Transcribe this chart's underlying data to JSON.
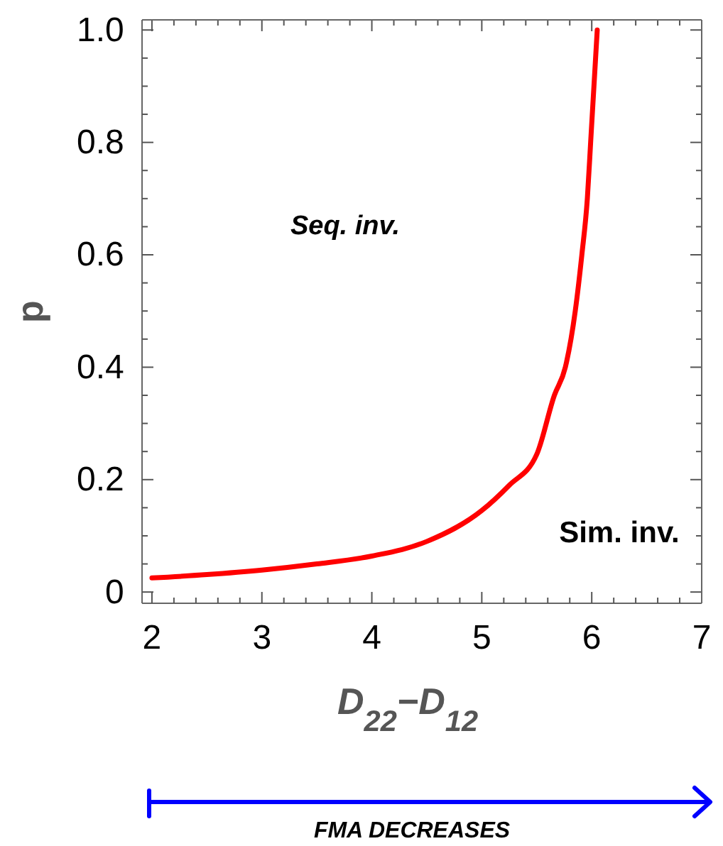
{
  "chart_data": {
    "type": "line",
    "xlabel": "D$_{22}$−D$_{12}$",
    "ylabel": "p",
    "x": [
      2,
      2.5,
      3,
      3.5,
      4,
      4.5,
      5,
      5.25,
      5.5,
      5.66,
      5.76,
      5.85,
      5.91,
      5.96,
      5.99,
      6.02,
      6.05
    ],
    "series": [
      {
        "color": "#ff0000",
        "values": [
          0.025,
          0.031,
          0.039,
          0.05,
          0.064,
          0.09,
          0.145,
          0.19,
          0.245,
          0.35,
          0.4,
          0.5,
          0.6,
          0.7,
          0.8,
          0.9,
          1.0
        ]
      }
    ],
    "xlim": [
      1.91,
      7
    ],
    "ylim": [
      -0.02,
      1.018
    ],
    "xticks": [
      2,
      {
        "value": 2.2,
        "label": null
      },
      {
        "value": 2.4,
        "label": null
      },
      {
        "value": 2.6,
        "label": null
      },
      {
        "value": 2.8,
        "label": null
      },
      3,
      {
        "value": 3.2,
        "label": null
      },
      {
        "value": 3.4,
        "label": null
      },
      {
        "value": 3.6,
        "label": null
      },
      {
        "value": 3.8,
        "label": null
      },
      4,
      {
        "value": 4.2,
        "label": null
      },
      {
        "value": 4.4,
        "label": null
      },
      {
        "value": 4.6,
        "label": null
      },
      {
        "value": 4.8,
        "label": null
      },
      5,
      {
        "value": 5.2,
        "label": null
      },
      {
        "value": 5.4,
        "label": null
      },
      {
        "value": 5.6,
        "label": null
      },
      {
        "value": 5.8,
        "label": null
      },
      6,
      {
        "value": 6.2,
        "label": null
      },
      {
        "value": 6.4,
        "label": null
      },
      {
        "value": 6.6,
        "label": null
      },
      {
        "value": 6.8,
        "label": null
      },
      7
    ],
    "yticks": [
      0,
      {
        "value": 0.05,
        "label": null
      },
      {
        "value": 0.1,
        "label": null
      },
      {
        "value": 0.15,
        "label": null
      },
      0.2,
      {
        "value": 0.25,
        "label": null
      },
      {
        "value": 0.3,
        "label": null
      },
      {
        "value": 0.35,
        "label": null
      },
      0.4,
      {
        "value": 0.45,
        "label": null
      },
      {
        "value": 0.5,
        "label": null
      },
      {
        "value": 0.55,
        "label": null
      },
      0.6,
      {
        "value": 0.65,
        "label": null
      },
      {
        "value": 0.7,
        "label": null
      },
      {
        "value": 0.75,
        "label": null
      },
      0.8,
      {
        "value": 0.85,
        "label": null
      },
      {
        "value": 0.9,
        "label": null
      },
      {
        "value": 0.95,
        "label": null
      },
      {
        "value": 1,
        "label": "1.0"
      }
    ],
    "line_style": "solid",
    "marker": "none",
    "grid": false,
    "annotations": [
      "Seq. inv.",
      "Sim. inv.",
      "FMA DECREASES"
    ]
  }
}
